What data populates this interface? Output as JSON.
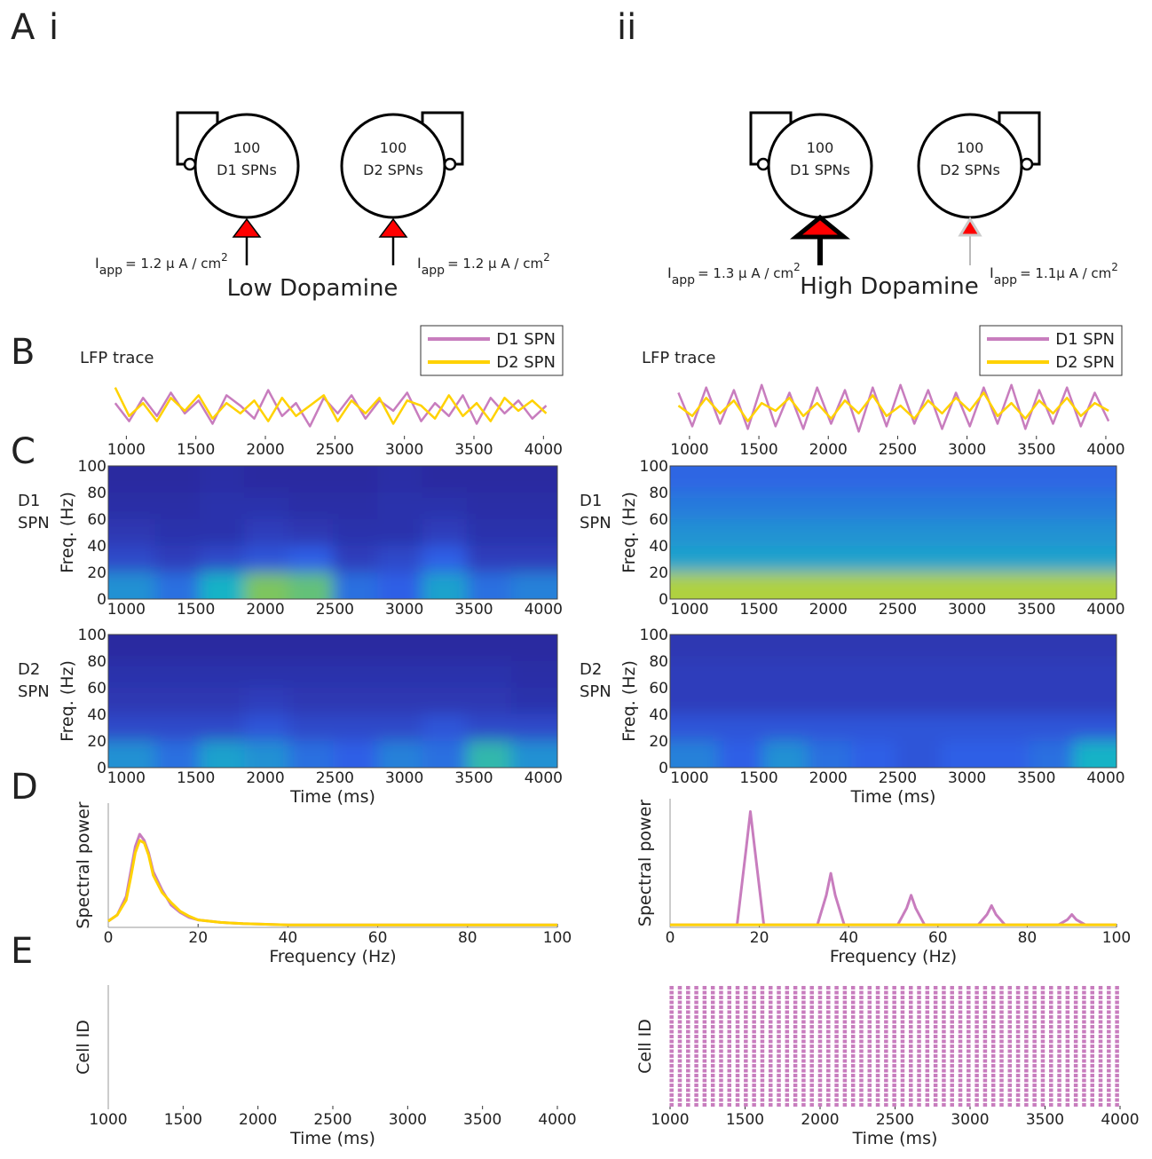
{
  "panels": {
    "A": "A",
    "i": "i",
    "ii": "ii",
    "B": "B",
    "C": "C",
    "D": "D",
    "E": "E"
  },
  "diagrams": [
    {
      "title": "Low Dopamine",
      "cells": [
        {
          "count": 100,
          "label": "D1 SPNs",
          "iapp": {
            "symbol": "I",
            "sub": "app",
            "text": "= 1.2 μ A / cm",
            "sup": "2"
          }
        },
        {
          "count": 100,
          "label": "D2 SPNs",
          "iapp": {
            "symbol": "I",
            "sub": "app",
            "text": "= 1.2 μ A / cm",
            "sup": "2"
          }
        }
      ]
    },
    {
      "title": "High Dopamine",
      "cells": [
        {
          "count": 100,
          "label": "D1 SPNs",
          "iapp": {
            "symbol": "I",
            "sub": "app",
            "text": "= 1.3 μ A / cm",
            "sup": "2"
          }
        },
        {
          "count": 100,
          "label": "D2 SPNs",
          "iapp": {
            "symbol": "I",
            "sub": "app",
            "text": "= 1.1μ A / cm",
            "sup": "2"
          }
        }
      ]
    }
  ],
  "chart_data": [
    {
      "type": "line",
      "title": "LFP trace",
      "legend": "upper right",
      "xlim": [
        870,
        4100
      ],
      "ylim": [
        -1.2,
        1.2
      ],
      "xticks": [
        1000,
        1500,
        2000,
        2500,
        3000,
        3500,
        4000
      ],
      "x": [
        920,
        1020,
        1120,
        1220,
        1320,
        1420,
        1520,
        1620,
        1720,
        1820,
        1920,
        2020,
        2120,
        2220,
        2320,
        2420,
        2520,
        2620,
        2720,
        2820,
        2920,
        3020,
        3120,
        3220,
        3320,
        3420,
        3520,
        3620,
        3720,
        3820,
        3920,
        4020
      ],
      "series": [
        {
          "name": "D1 SPN",
          "color": "#c87dbe",
          "values": [
            0.2,
            -0.5,
            0.4,
            -0.3,
            0.6,
            -0.2,
            0.3,
            -0.6,
            0.5,
            0.1,
            -0.4,
            0.7,
            -0.3,
            0.2,
            -0.7,
            0.4,
            -0.2,
            0.5,
            -0.4,
            0.3,
            -0.1,
            0.6,
            -0.5,
            0.2,
            -0.3,
            0.5,
            -0.6,
            0.4,
            -0.2,
            0.3,
            -0.4,
            0.1
          ]
        },
        {
          "name": "D2 SPN",
          "color": "#ffd200",
          "values": [
            0.8,
            -0.3,
            0.2,
            -0.5,
            0.4,
            -0.1,
            0.5,
            -0.4,
            0.2,
            -0.2,
            0.3,
            -0.5,
            0.4,
            -0.3,
            0.1,
            0.5,
            -0.5,
            0.3,
            -0.2,
            0.4,
            -0.6,
            0.3,
            0.1,
            -0.4,
            0.5,
            -0.3,
            0.2,
            -0.5,
            0.4,
            -0.1,
            0.3,
            -0.2
          ]
        }
      ]
    },
    {
      "type": "line",
      "title": "LFP trace",
      "legend": "upper right",
      "xlim": [
        860,
        4077
      ],
      "ylim": [
        -1.2,
        1.2
      ],
      "xticks": [
        1000,
        1500,
        2000,
        2500,
        3000,
        3500,
        4000
      ],
      "x": [
        920,
        1020,
        1120,
        1220,
        1320,
        1420,
        1520,
        1620,
        1720,
        1820,
        1920,
        2020,
        2120,
        2220,
        2320,
        2420,
        2520,
        2620,
        2720,
        2820,
        2920,
        3020,
        3120,
        3220,
        3320,
        3420,
        3520,
        3620,
        3720,
        3820,
        3920,
        4020
      ],
      "series": [
        {
          "name": "D1 SPN",
          "color": "#c87dbe",
          "values": [
            0.6,
            -0.7,
            0.8,
            -0.6,
            0.7,
            -0.8,
            0.9,
            -0.7,
            0.6,
            -0.8,
            0.8,
            -0.6,
            0.7,
            -0.9,
            0.8,
            -0.7,
            0.9,
            -0.6,
            0.7,
            -0.8,
            0.6,
            -0.7,
            0.8,
            -0.6,
            0.9,
            -0.8,
            0.7,
            -0.6,
            0.8,
            -0.7,
            0.6,
            -0.5
          ]
        },
        {
          "name": "D2 SPN",
          "color": "#ffd200",
          "values": [
            0.1,
            -0.3,
            0.4,
            -0.2,
            0.3,
            -0.5,
            0.2,
            -0.1,
            0.4,
            -0.3,
            0.2,
            -0.4,
            0.3,
            -0.2,
            0.5,
            -0.3,
            0.1,
            -0.4,
            0.3,
            -0.2,
            0.4,
            -0.1,
            0.6,
            -0.3,
            0.2,
            -0.4,
            0.3,
            -0.2,
            0.4,
            -0.3,
            0.2,
            -0.1
          ]
        }
      ]
    },
    {
      "type": "heatmap",
      "row_label": [
        "D1",
        "SPN"
      ],
      "ylabel": "Freq. (Hz)",
      "colormap": "parula",
      "xlim": [
        870,
        4100
      ],
      "ylim": [
        0,
        100
      ],
      "xticks": [
        1000,
        1500,
        2000,
        2500,
        3000,
        3500,
        4000
      ],
      "yticks": [
        0,
        20,
        40,
        60,
        80,
        100
      ],
      "x": [
        1060,
        1380,
        1700,
        2020,
        2340,
        2660,
        2980,
        3300,
        3620,
        3940
      ],
      "y": [
        10,
        30,
        50,
        70,
        90
      ],
      "z": [
        [
          0.45,
          0.35,
          0.55,
          0.75,
          0.7,
          0.35,
          0.3,
          0.5,
          0.35,
          0.4
        ],
        [
          0.2,
          0.15,
          0.2,
          0.25,
          0.3,
          0.15,
          0.2,
          0.3,
          0.15,
          0.15
        ],
        [
          0.12,
          0.1,
          0.1,
          0.15,
          0.12,
          0.1,
          0.1,
          0.15,
          0.1,
          0.1
        ],
        [
          0.08,
          0.08,
          0.1,
          0.1,
          0.08,
          0.08,
          0.1,
          0.1,
          0.08,
          0.08
        ],
        [
          0.06,
          0.06,
          0.08,
          0.06,
          0.06,
          0.06,
          0.08,
          0.06,
          0.06,
          0.06
        ]
      ]
    },
    {
      "type": "heatmap",
      "row_label": [
        "D1",
        "SPN"
      ],
      "ylabel": "Freq. (Hz)",
      "colormap": "parula",
      "xlim": [
        860,
        4077
      ],
      "ylim": [
        0,
        100
      ],
      "xticks": [
        1000,
        1500,
        2000,
        2500,
        3000,
        3500,
        4000
      ],
      "yticks": [
        0,
        20,
        40,
        60,
        80,
        100
      ],
      "x": [
        1060,
        1380,
        1700,
        2020,
        2340,
        2660,
        2980,
        3300,
        3620,
        3940
      ],
      "y": [
        10,
        30,
        50,
        70,
        90
      ],
      "z": [
        [
          0.85,
          0.85,
          0.85,
          0.85,
          0.85,
          0.85,
          0.85,
          0.85,
          0.85,
          0.85
        ],
        [
          0.5,
          0.5,
          0.5,
          0.5,
          0.5,
          0.5,
          0.5,
          0.5,
          0.5,
          0.5
        ],
        [
          0.45,
          0.45,
          0.45,
          0.45,
          0.45,
          0.45,
          0.45,
          0.45,
          0.45,
          0.45
        ],
        [
          0.38,
          0.38,
          0.38,
          0.38,
          0.38,
          0.38,
          0.38,
          0.38,
          0.38,
          0.38
        ],
        [
          0.32,
          0.32,
          0.32,
          0.32,
          0.32,
          0.32,
          0.32,
          0.32,
          0.32,
          0.32
        ]
      ]
    },
    {
      "type": "heatmap",
      "row_label": [
        "D2",
        "SPN"
      ],
      "ylabel": "Freq. (Hz)",
      "xlabel": "Time (ms)",
      "colormap": "parula",
      "xlim": [
        870,
        4100
      ],
      "ylim": [
        0,
        100
      ],
      "xticks": [
        1000,
        1500,
        2000,
        2500,
        3000,
        3500,
        4000
      ],
      "yticks": [
        0,
        20,
        40,
        60,
        80,
        100
      ],
      "x": [
        1060,
        1380,
        1700,
        2020,
        2340,
        2660,
        2980,
        3300,
        3620,
        3940
      ],
      "y": [
        10,
        30,
        50,
        70,
        90
      ],
      "z": [
        [
          0.45,
          0.35,
          0.5,
          0.45,
          0.35,
          0.3,
          0.4,
          0.35,
          0.6,
          0.45
        ],
        [
          0.2,
          0.2,
          0.2,
          0.25,
          0.2,
          0.2,
          0.2,
          0.25,
          0.2,
          0.2
        ],
        [
          0.12,
          0.12,
          0.12,
          0.15,
          0.12,
          0.12,
          0.12,
          0.12,
          0.12,
          0.1
        ],
        [
          0.1,
          0.1,
          0.1,
          0.1,
          0.1,
          0.1,
          0.1,
          0.1,
          0.1,
          0.08
        ],
        [
          0.06,
          0.06,
          0.06,
          0.06,
          0.06,
          0.06,
          0.06,
          0.06,
          0.06,
          0.06
        ]
      ]
    },
    {
      "type": "heatmap",
      "row_label": [
        "D2",
        "SPN"
      ],
      "ylabel": "Freq. (Hz)",
      "xlabel": "Time (ms)",
      "colormap": "parula",
      "xlim": [
        860,
        4077
      ],
      "ylim": [
        0,
        100
      ],
      "xticks": [
        1000,
        1500,
        2000,
        2500,
        3000,
        3500,
        4000
      ],
      "yticks": [
        0,
        20,
        40,
        60,
        80,
        100
      ],
      "x": [
        1060,
        1380,
        1700,
        2020,
        2340,
        2660,
        2980,
        3300,
        3620,
        3940
      ],
      "y": [
        10,
        30,
        50,
        70,
        90
      ],
      "z": [
        [
          0.4,
          0.3,
          0.45,
          0.35,
          0.3,
          0.25,
          0.3,
          0.3,
          0.35,
          0.55
        ],
        [
          0.25,
          0.25,
          0.25,
          0.25,
          0.25,
          0.25,
          0.25,
          0.25,
          0.25,
          0.25
        ],
        [
          0.15,
          0.15,
          0.15,
          0.15,
          0.15,
          0.15,
          0.15,
          0.15,
          0.15,
          0.15
        ],
        [
          0.15,
          0.15,
          0.15,
          0.15,
          0.15,
          0.15,
          0.15,
          0.15,
          0.15,
          0.15
        ],
        [
          0.12,
          0.12,
          0.12,
          0.12,
          0.12,
          0.12,
          0.12,
          0.12,
          0.12,
          0.12
        ]
      ]
    },
    {
      "type": "line",
      "ylabel": "Spectral power",
      "xlabel": "Frequency (Hz)",
      "axes": true,
      "xlim": [
        0,
        100
      ],
      "ylim": [
        0,
        1
      ],
      "xticks": [
        0,
        20,
        40,
        60,
        80,
        100
      ],
      "x": [
        0,
        2,
        4,
        5,
        6,
        7,
        8,
        9,
        10,
        12,
        14,
        16,
        18,
        20,
        25,
        30,
        40,
        50,
        60,
        80,
        100
      ],
      "series": [
        {
          "name": "D1 SPN",
          "color": "#c87dbe",
          "values": [
            0.05,
            0.1,
            0.25,
            0.45,
            0.65,
            0.75,
            0.7,
            0.6,
            0.45,
            0.3,
            0.18,
            0.12,
            0.08,
            0.06,
            0.04,
            0.03,
            0.02,
            0.02,
            0.02,
            0.02,
            0.02
          ]
        },
        {
          "name": "D2 SPN",
          "color": "#ffd200",
          "values": [
            0.05,
            0.1,
            0.22,
            0.4,
            0.6,
            0.7,
            0.68,
            0.58,
            0.42,
            0.28,
            0.2,
            0.13,
            0.09,
            0.06,
            0.04,
            0.03,
            0.02,
            0.02,
            0.02,
            0.02,
            0.02
          ]
        }
      ]
    },
    {
      "type": "line",
      "ylabel": "Spectral power",
      "xlabel": "Frequency (Hz)",
      "axes": true,
      "xlim": [
        0,
        100
      ],
      "ylim": [
        0,
        1
      ],
      "xticks": [
        0,
        20,
        40,
        60,
        80,
        100
      ],
      "x": [
        0,
        15,
        17,
        18,
        19,
        21,
        33,
        35,
        36,
        37,
        39,
        51,
        53,
        54,
        55,
        57,
        69,
        71,
        72,
        73,
        75,
        87,
        89,
        90,
        91,
        93,
        100
      ],
      "series": [
        {
          "name": "D1 SPN",
          "color": "#c87dbe",
          "values": [
            0.02,
            0.02,
            0.6,
            0.9,
            0.6,
            0.02,
            0.02,
            0.25,
            0.42,
            0.25,
            0.02,
            0.02,
            0.15,
            0.25,
            0.15,
            0.02,
            0.02,
            0.1,
            0.17,
            0.1,
            0.02,
            0.02,
            0.06,
            0.1,
            0.06,
            0.02,
            0.02
          ]
        },
        {
          "name": "D2 SPN",
          "color": "#ffd200",
          "values": [
            0.02,
            0.02,
            0.02,
            0.02,
            0.02,
            0.02,
            0.02,
            0.02,
            0.02,
            0.02,
            0.02,
            0.02,
            0.02,
            0.02,
            0.02,
            0.02,
            0.02,
            0.02,
            0.02,
            0.02,
            0.02,
            0.02,
            0.02,
            0.02,
            0.02,
            0.02,
            0.02
          ]
        }
      ]
    },
    {
      "type": "raster",
      "ylabel": "Cell ID",
      "xlabel": "Time (ms)",
      "axes": true,
      "color": "#c87dbe",
      "xlim": [
        1000,
        4000
      ],
      "xticks": [
        1000,
        1500,
        2000,
        2500,
        3000,
        3500,
        4000
      ],
      "spike_times": []
    },
    {
      "type": "raster",
      "ylabel": "Cell ID",
      "xlabel": "Time (ms)",
      "color": "#c87dbe",
      "xlim": [
        1000,
        4000
      ],
      "xticks": [
        1000,
        1500,
        2000,
        2500,
        3000,
        3500,
        4000
      ],
      "spike_times": [
        1010,
        1065,
        1120,
        1175,
        1230,
        1285,
        1340,
        1395,
        1450,
        1505,
        1560,
        1615,
        1670,
        1725,
        1780,
        1835,
        1890,
        1945,
        2000,
        2055,
        2110,
        2165,
        2220,
        2275,
        2330,
        2385,
        2440,
        2495,
        2550,
        2605,
        2660,
        2715,
        2770,
        2825,
        2880,
        2935,
        2990,
        3045,
        3100,
        3155,
        3210,
        3265,
        3320,
        3375,
        3430,
        3485,
        3540,
        3595,
        3650,
        3705,
        3760,
        3815,
        3870,
        3925,
        3980
      ]
    }
  ]
}
